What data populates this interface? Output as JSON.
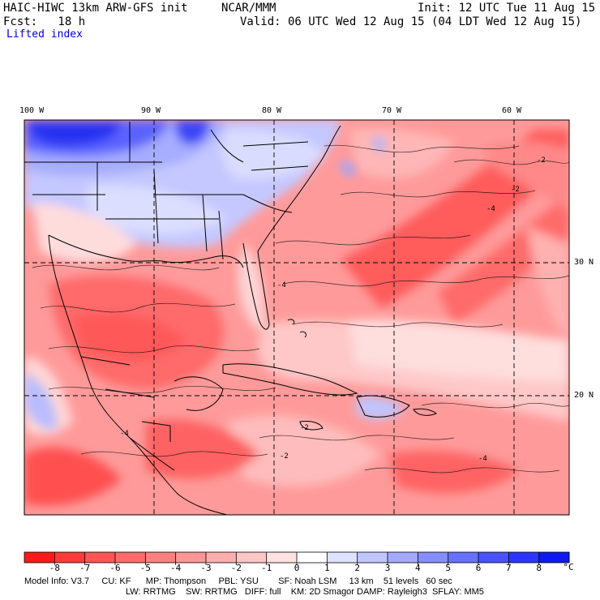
{
  "header": {
    "model_title": "HAIC-HIWC 13km ARW-GFS init",
    "agency": "NCAR/MMM",
    "init": "Init: 12 UTC Tue 11 Aug 15",
    "fcst": "Fcst:   18 h",
    "valid": "Valid: 06 UTC Wed 12 Aug 15 (04 LDT Wed 12 Aug 15)",
    "field": "Lifted index"
  },
  "map": {
    "lon_labels": [
      "100 W",
      "90 W",
      "80 W",
      "70 W",
      "60 W"
    ],
    "lat_labels": [
      "30 N",
      "20 N"
    ]
  },
  "legend": {
    "unit": "°C",
    "ticks": [
      "-8",
      "-7",
      "-6",
      "-5",
      "-4",
      "-3",
      "-2",
      "-1",
      "0",
      "1",
      "2",
      "3",
      "4",
      "5",
      "6",
      "7",
      "8"
    ],
    "colors": [
      "#ff1a1a",
      "#ff3b3b",
      "#ff5555",
      "#ff6b6b",
      "#ff8080",
      "#ff9696",
      "#ffaeae",
      "#ffc6c6",
      "#ffe2e2",
      "#ffffff",
      "#dfe2ff",
      "#c2c6ff",
      "#a4aaff",
      "#868dff",
      "#6870ff",
      "#4a52ff",
      "#2c35ff",
      "#0e18f0"
    ]
  },
  "footer": {
    "line1": "Model Info: V3.7     CU: KF      MP: Thompson     PBL: YSU        SF: Noah LSM     13 km    51 levels   60 sec",
    "line2": "LW: RRTMG    SW: RRTMG   DIFF: full    KM: 2D Smagor DAMP: Rayleigh3  SFLAY: MM5"
  },
  "colors": {
    "strong_red": "#ff5a5a",
    "mid_red": "#ff8a8a",
    "light_red": "#ffc4c4",
    "light_blue": "#c8ccff",
    "deep_blue": "#2a34f0"
  }
}
